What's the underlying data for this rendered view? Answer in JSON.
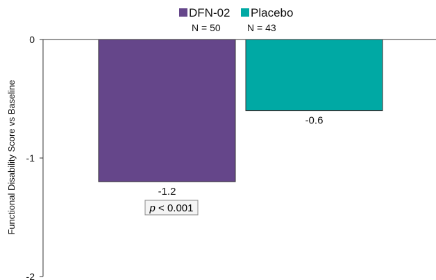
{
  "chart_data": {
    "type": "bar",
    "categories": [
      "DFN-02",
      "Placebo"
    ],
    "series": [
      {
        "name": "DFN-02",
        "n_label": "N = 50",
        "value": -1.2,
        "value_label": "-1.2",
        "color": "#65468a"
      },
      {
        "name": "Placebo",
        "n_label": "N = 43",
        "value": -0.6,
        "value_label": "-0.6",
        "color": "#00a9a4"
      }
    ],
    "ylabel": "Functional Disability Score vs Baseline",
    "xlabel": "",
    "ylim": [
      -2,
      0
    ],
    "yticks": [
      0,
      -1,
      -2
    ],
    "ytick_labels": [
      "0",
      "-1",
      "-2"
    ],
    "legend_position": "top",
    "annotation": {
      "p_symbol": "p",
      "text": " < 0.001",
      "series": "DFN-02"
    },
    "grid": false
  }
}
